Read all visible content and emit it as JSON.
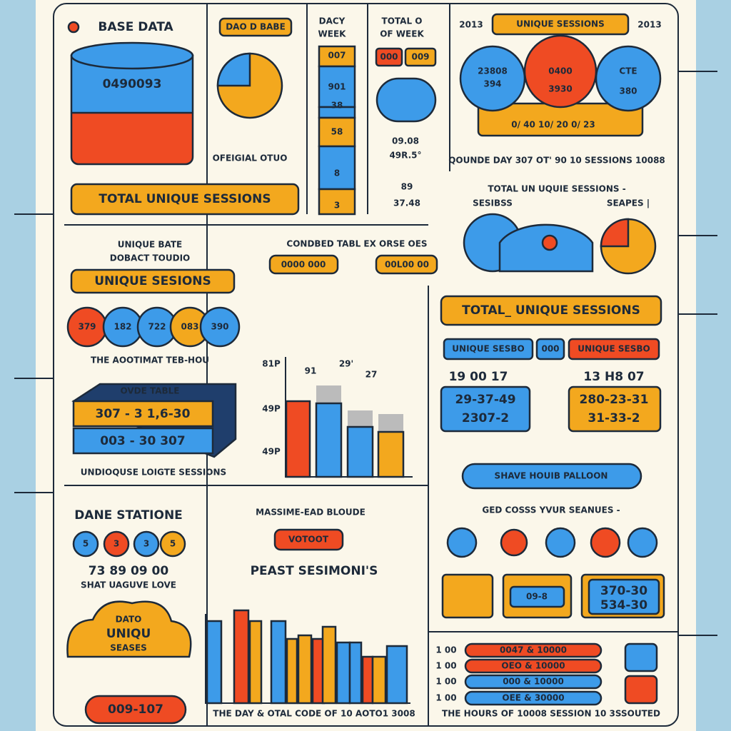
{
  "base_data": {
    "title": "BASE DATA",
    "cylinder": "0490093",
    "button": "TOTAL UNIQUE SESSIONS"
  },
  "pie_panel": {
    "button": "DAO D BABE",
    "caption": "OFEIGIAL OTUO"
  },
  "week_column": {
    "title": [
      "DACY",
      "WEEK"
    ],
    "stack": [
      "007",
      "901",
      "38",
      "58",
      "8",
      "3"
    ]
  },
  "week_total": {
    "title": [
      "TOTAL O",
      "OF WEEK"
    ],
    "tags": [
      "000",
      "009"
    ],
    "values": [
      "09.08",
      "49R.5°"
    ],
    "bottom": [
      "89",
      "37.48"
    ]
  },
  "venn": {
    "years": [
      "2013",
      "2013"
    ],
    "title": "UNIQUE SESSIONS",
    "circles": [
      [
        "23808",
        "394"
      ],
      [
        "0400",
        "3930"
      ],
      [
        "CTE",
        "380"
      ]
    ],
    "bar": "0/ 40 10/ 20 0/ 23",
    "caption": "QOUNDE DAY 307 OT' 90 10 SESSIONS 10088"
  },
  "gauge": {
    "title": "TOTAL UN UQUIE SESSIONS -",
    "left": "SESIBSS",
    "right": "SEAPES |"
  },
  "unique_rate": {
    "title": [
      "UNIQUE BATE",
      "DOBACT TOUDIO"
    ],
    "button": "UNIQUE SESIONS",
    "circles": [
      "379",
      "182",
      "722",
      "083",
      "390"
    ],
    "caption": "THE AOOTIMAT TEB-HOU"
  },
  "ovde_table": {
    "title": "OVDE TABLE",
    "rows": [
      "307 - 3 1,6-30",
      "003 - 30 307"
    ],
    "caption": "UNDIOQUSE LOIGTE SESSIONS"
  },
  "combined": {
    "title": "CONDBED TABL EX ORSE OES",
    "buttons": [
      "0000 000",
      "00L00 00"
    ],
    "labels": [
      "81P",
      "91",
      "29'",
      "27",
      "49P",
      "49P"
    ]
  },
  "total_panel": {
    "title": "TOTAL_ UNIQUE SESSIONS",
    "tags": [
      "UNIQUE SESBO",
      "000",
      "UNIQUE SESBO"
    ],
    "numbers": [
      "19 00 17",
      "13 H8 07"
    ],
    "boxes": [
      [
        "29-37-49",
        "2307-2"
      ],
      [
        "280-23-31",
        "31-33-2"
      ]
    ],
    "pill": "SHAVE HOUIB PALLOON",
    "subtitle": "GED COSSS YVUR SEANUES -",
    "cards": [
      "09-8",
      "370-30",
      "534-30"
    ]
  },
  "stations": {
    "title": "DANE STATIONE",
    "dots": [
      "5",
      "3",
      "3",
      "5"
    ],
    "numbers": "73 89 09 00",
    "caption": "SHAT UAGUVE LOVE",
    "cloud": [
      "DATO",
      "UNIQU",
      "SEASES"
    ],
    "pill": "009-107"
  },
  "peak": {
    "title": "MASSIME-EAD BLOUDE",
    "tag": "VOTOOT",
    "subtitle": "PEAST SESIMONI'S",
    "caption": "THE DAY & OTAL CODE OF 10 AOTO1 3008"
  },
  "hours": {
    "labels": [
      "1 00",
      "1 00",
      "1 00",
      "1 00"
    ],
    "bars": [
      "0047 & 10000",
      "OEO & 10000",
      "000 & 10000",
      "OEE & 30000"
    ],
    "caption": "THE HOURS OF 10008 SESSION 10 3SSOUTED"
  }
}
